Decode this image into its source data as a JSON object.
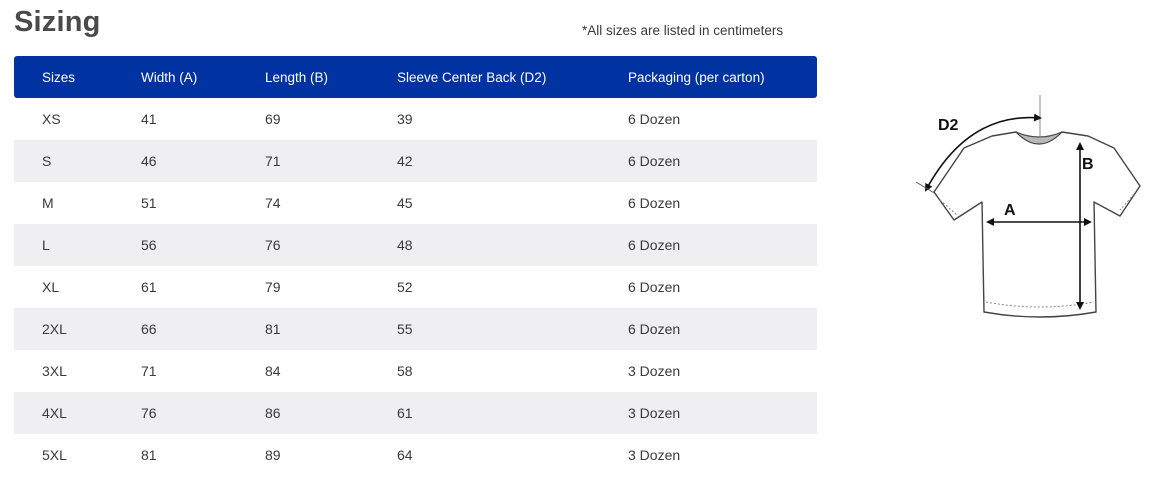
{
  "title": "Sizing",
  "note": "*All sizes are listed in centimeters",
  "table": {
    "headers": [
      "Sizes",
      "Width (A)",
      "Length (B)",
      "Sleeve Center Back (D2)",
      "Packaging (per carton)"
    ],
    "rows": [
      [
        "XS",
        "41",
        "69",
        "39",
        "6 Dozen"
      ],
      [
        "S",
        "46",
        "71",
        "42",
        "6 Dozen"
      ],
      [
        "M",
        "51",
        "74",
        "45",
        "6 Dozen"
      ],
      [
        "L",
        "56",
        "76",
        "48",
        "6 Dozen"
      ],
      [
        "XL",
        "61",
        "79",
        "52",
        "6 Dozen"
      ],
      [
        "2XL",
        "66",
        "81",
        "55",
        "6 Dozen"
      ],
      [
        "3XL",
        "71",
        "84",
        "58",
        "3 Dozen"
      ],
      [
        "4XL",
        "76",
        "86",
        "61",
        "3 Dozen"
      ],
      [
        "5XL",
        "81",
        "89",
        "64",
        "3 Dozen"
      ]
    ]
  },
  "diagram": {
    "label_d2": "D2",
    "label_a": "A",
    "label_b": "B"
  },
  "colors": {
    "header_bg": "#0033a1",
    "alt_row_bg": "#efeef0"
  }
}
